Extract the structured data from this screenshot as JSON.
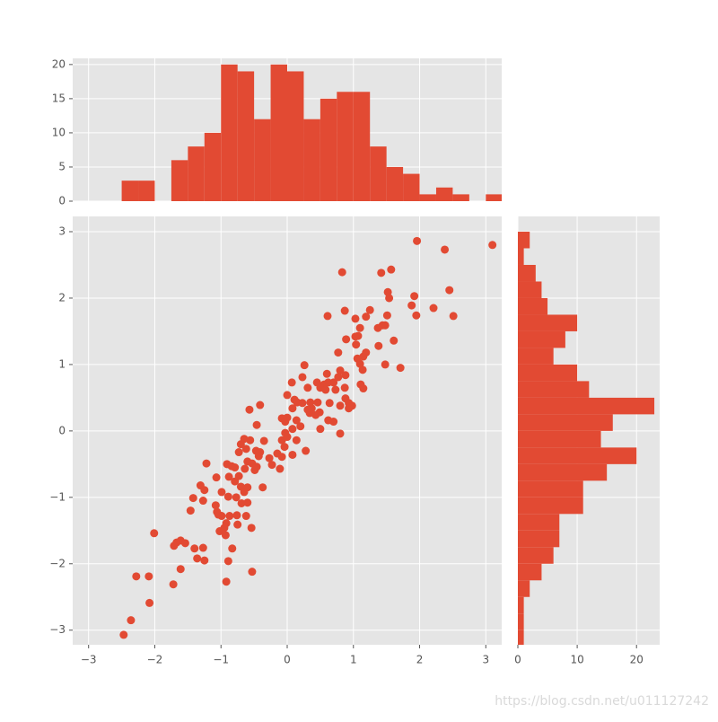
{
  "chart_data": [
    {
      "type": "histogram",
      "orientation": "vertical",
      "color": "#E24A33",
      "bins": [
        -2.5,
        -2.25,
        -2.0,
        -1.75,
        -1.5,
        -1.25,
        -1.0,
        -0.75,
        -0.5,
        -0.25,
        0,
        0.25,
        0.5,
        0.75,
        1.0,
        1.25,
        1.5,
        1.75,
        2.0,
        2.25,
        2.5,
        2.75,
        3.0,
        3.25
      ],
      "values": [
        3,
        3,
        0,
        6,
        8,
        10,
        20,
        19,
        12,
        20,
        19,
        12,
        15,
        16,
        16,
        8,
        5,
        4,
        1,
        2,
        1,
        0,
        1
      ],
      "xlim": [
        -3.24,
        3.24
      ],
      "xticks": [
        -3,
        -2,
        -1,
        0,
        1,
        2,
        3
      ],
      "xticklabels": false,
      "ylim": [
        0,
        20.9
      ],
      "yticks": [
        0,
        5,
        10,
        15,
        20
      ],
      "grid": true
    },
    {
      "type": "scatter",
      "color": "#E24A33",
      "x": [
        3.1,
        1.96,
        2.38,
        2.45,
        2.51,
        2.21,
        1.92,
        1.88,
        1.95,
        1.57,
        1.42,
        1.52,
        1.54,
        0.83,
        0.87,
        0.61,
        1.25,
        1.19,
        1.03,
        1.51,
        1.48,
        1.44,
        1.37,
        1.1,
        1.07,
        1.03,
        0.89,
        1.04,
        1.38,
        1.61,
        0.77,
        1.19,
        1.15,
        1.06,
        1.1,
        1.48,
        1.71,
        1.14,
        0.8,
        0.26,
        0.6,
        0.77,
        0.88,
        0.23,
        0.62,
        0.7,
        1.11,
        1.15,
        0.87,
        0.73,
        0.07,
        0.45,
        0.56,
        0.5,
        0.31,
        0.58,
        0.11,
        0.15,
        0.23,
        0.35,
        0.0,
        0.46,
        0.64,
        0.88,
        0.93,
        0.98,
        0.93,
        0.8,
        0.37,
        0.34,
        0.49,
        0.08,
        0.31,
        0.43,
        -0.08,
        0.0,
        -0.03,
        0.14,
        0.7,
        0.62,
        0.2,
        0.5,
        0.8,
        -0.41,
        -0.57,
        -0.46,
        0.08,
        -0.03,
        0.0,
        -0.08,
        0.14,
        -0.35,
        -0.65,
        -0.7,
        -0.73,
        -0.62,
        -0.56,
        -0.47,
        -0.41,
        -0.43,
        -0.04,
        -0.15,
        -0.27,
        -0.08,
        0.08,
        0.28,
        -0.11,
        -0.23,
        -0.53,
        -0.6,
        -0.49,
        -0.46,
        -0.64,
        -0.91,
        -0.84,
        -0.79,
        -1.22,
        -1.07,
        -0.88,
        -0.79,
        -0.73,
        -0.7,
        -0.6,
        -0.37,
        -0.99,
        -0.65,
        -1.31,
        -1.25,
        -0.89,
        -0.77,
        -1.42,
        -1.27,
        -1.08,
        -0.69,
        -0.6,
        -1.46,
        -1.06,
        -0.99,
        -0.87,
        -0.76,
        -0.92,
        -1.04,
        -0.75,
        -0.62,
        -1.02,
        -0.95,
        -0.54,
        -0.93,
        -2.01,
        -1.67,
        -1.61,
        -1.71,
        -1.54,
        -1.4,
        -1.27,
        -0.83,
        -1.36,
        -1.25,
        -0.89,
        -1.61,
        -0.53,
        -2.28,
        -2.09,
        -1.72,
        -0.92,
        -2.08,
        -2.36,
        -2.47
      ],
      "y": [
        2.8,
        2.86,
        2.73,
        2.12,
        1.73,
        1.85,
        2.03,
        1.89,
        1.74,
        2.43,
        2.38,
        2.09,
        2.0,
        2.39,
        1.81,
        1.73,
        1.82,
        1.72,
        1.69,
        1.74,
        1.59,
        1.59,
        1.55,
        1.55,
        1.43,
        1.42,
        1.38,
        1.3,
        1.28,
        1.36,
        1.18,
        1.18,
        1.12,
        1.09,
        1.01,
        1.0,
        0.95,
        0.92,
        0.91,
        0.99,
        0.86,
        0.81,
        0.84,
        0.81,
        0.73,
        0.73,
        0.7,
        0.64,
        0.65,
        0.62,
        0.73,
        0.73,
        0.7,
        0.65,
        0.65,
        0.62,
        0.47,
        0.43,
        0.42,
        0.43,
        0.54,
        0.43,
        0.42,
        0.49,
        0.42,
        0.38,
        0.34,
        0.38,
        0.34,
        0.27,
        0.28,
        0.34,
        0.32,
        0.24,
        0.19,
        0.2,
        0.14,
        0.16,
        0.14,
        0.16,
        0.07,
        0.03,
        -0.04,
        0.39,
        0.32,
        0.09,
        0.03,
        -0.03,
        -0.09,
        -0.14,
        -0.14,
        -0.15,
        -0.12,
        -0.2,
        -0.32,
        -0.27,
        -0.14,
        -0.3,
        -0.32,
        -0.38,
        -0.24,
        -0.34,
        -0.41,
        -0.39,
        -0.36,
        -0.3,
        -0.57,
        -0.51,
        -0.49,
        -0.46,
        -0.59,
        -0.54,
        -0.57,
        -0.5,
        -0.53,
        -0.55,
        -0.49,
        -0.7,
        -0.69,
        -0.76,
        -0.68,
        -0.84,
        -0.85,
        -0.85,
        -0.92,
        -0.92,
        -0.82,
        -0.89,
        -0.99,
        -1.0,
        -1.01,
        -1.05,
        -1.12,
        -1.09,
        -1.08,
        -1.2,
        -1.22,
        -1.28,
        -1.28,
        -1.27,
        -1.39,
        -1.26,
        -1.41,
        -1.28,
        -1.51,
        -1.46,
        -1.46,
        -1.57,
        -1.54,
        -1.68,
        -1.65,
        -1.73,
        -1.69,
        -1.77,
        -1.76,
        -1.77,
        -1.92,
        -1.95,
        -1.96,
        -2.08,
        -2.12,
        -2.19,
        -2.19,
        -2.31,
        -2.27,
        -2.59,
        -2.85,
        -3.07
      ],
      "xlim": [
        -3.24,
        3.24
      ],
      "xticks": [
        {
          "value": -3,
          "label": "−3"
        },
        {
          "value": -2,
          "label": "−2"
        },
        {
          "value": -1,
          "label": "−1"
        },
        0,
        1,
        2,
        3
      ],
      "ylim": [
        -3.22,
        3.23
      ],
      "yticks": [
        {
          "value": -3,
          "label": "−3"
        },
        {
          "value": -2,
          "label": "−2"
        },
        {
          "value": -1,
          "label": "−1"
        },
        0,
        1,
        2,
        3
      ],
      "grid": true
    },
    {
      "type": "histogram",
      "orientation": "horizontal",
      "color": "#E24A33",
      "bins": [
        -3.25,
        -3.0,
        -2.75,
        -2.5,
        -2.25,
        -2.0,
        -1.75,
        -1.5,
        -1.25,
        -1.0,
        -0.75,
        -0.5,
        -0.25,
        0,
        0.25,
        0.5,
        0.75,
        1.0,
        1.25,
        1.5,
        1.75,
        2.0,
        2.25,
        2.5,
        2.75,
        3.0
      ],
      "values": [
        1,
        1,
        1,
        2,
        4,
        6,
        7,
        7,
        11,
        11,
        15,
        20,
        14,
        16,
        23,
        12,
        10,
        6,
        8,
        10,
        5,
        4,
        3,
        1,
        2
      ],
      "xlim": [
        0,
        23.9
      ],
      "xticks": [
        0,
        10,
        20
      ],
      "ylim": [
        -3.22,
        3.23
      ],
      "yticks": [
        -3,
        -2,
        -1,
        0,
        1,
        2,
        3
      ],
      "yticklabels": false,
      "grid": true
    }
  ],
  "watermark": "https://blog.csdn.net/u011127242"
}
